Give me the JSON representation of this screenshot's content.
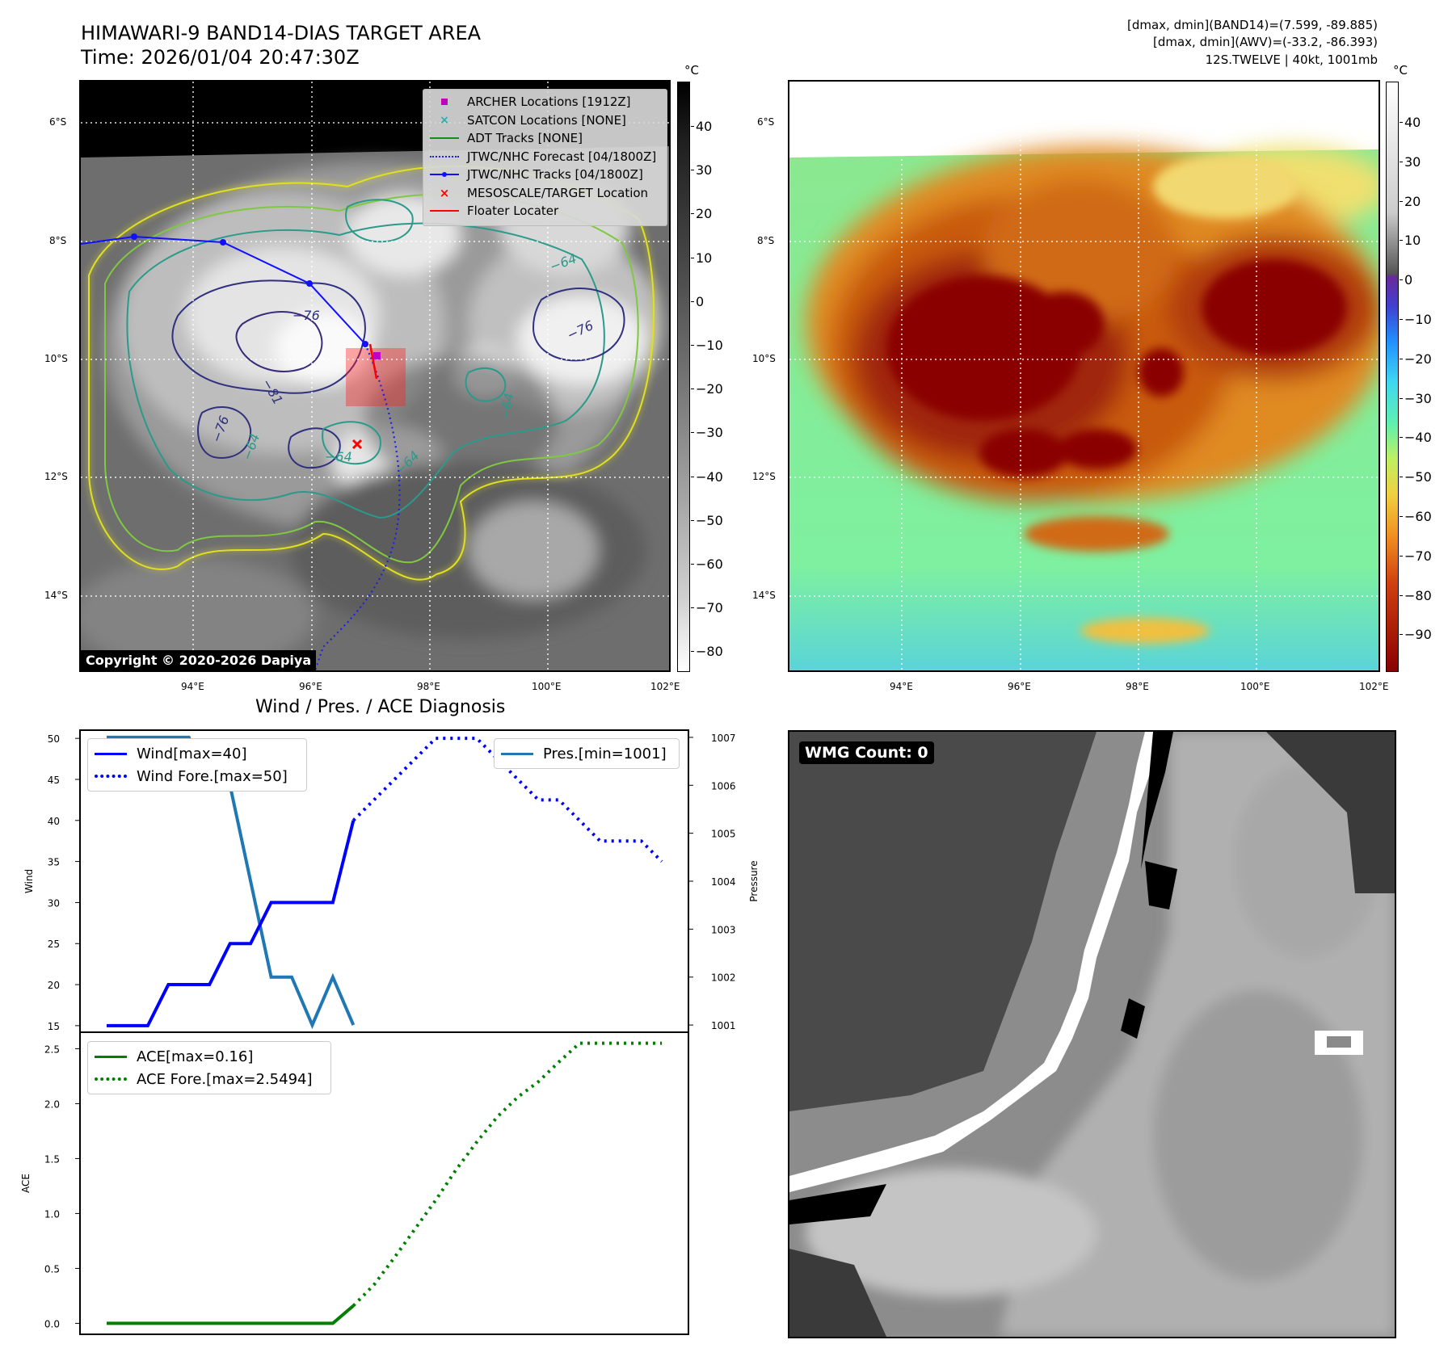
{
  "header": {
    "title_line1": "HIMAWARI-9 BAND14-DIAS TARGET AREA",
    "title_line2": "Time: 2026/01/04 20:47:30Z",
    "info_line1": "[dmax, dmin](BAND14)=(7.599, -89.885)",
    "info_line2": "[dmax, dmin](AWV)=(-33.2, -86.393)",
    "info_line3": "12S.TWELVE | 40kt, 1001mb"
  },
  "map_axes": {
    "lat_labels": [
      "6°S",
      "8°S",
      "10°S",
      "12°S",
      "14°S"
    ],
    "lon_labels": [
      "94°E",
      "96°E",
      "98°E",
      "100°E",
      "102°E"
    ]
  },
  "ir_panel": {
    "copyright": "Copyright © 2020-2026 Dapiya",
    "colorbar_unit": "°C",
    "colorbar_ticks": [
      "40",
      "30",
      "20",
      "10",
      "0",
      "−10",
      "−20",
      "−30",
      "−40",
      "−50",
      "−60",
      "−70",
      "−80"
    ],
    "contour_labels": [
      "−76",
      "−81",
      "−76",
      "−64",
      "−64",
      "−76",
      "−64",
      "−64",
      "−64"
    ],
    "legend": [
      {
        "label": "ARCHER Locations [1912Z]",
        "icon": "square-marker",
        "color": "#c000c0"
      },
      {
        "label": "SATCON Locations [NONE]",
        "icon": "x-marker",
        "color": "#20b0b0"
      },
      {
        "label": "ADT Tracks [NONE]",
        "icon": "line",
        "color": "#1a8a1a"
      },
      {
        "label": "JTWC/NHC Forecast [04/1800Z]",
        "icon": "dotted-line",
        "color": "#2020e0"
      },
      {
        "label": "JTWC/NHC Tracks [04/1800Z]",
        "icon": "line-dot",
        "color": "#1010ff"
      },
      {
        "label": "MESOSCALE/TARGET Location",
        "icon": "x-marker",
        "color": "#ff0000"
      },
      {
        "label": "Floater Locater",
        "icon": "line",
        "color": "#ff0000"
      }
    ]
  },
  "awv_panel": {
    "colorbar_unit": "°C",
    "colorbar_ticks": [
      "40",
      "30",
      "20",
      "10",
      "0",
      "−10",
      "−20",
      "−30",
      "−40",
      "−50",
      "−60",
      "−70",
      "−80",
      "−90"
    ]
  },
  "wmg_panel": {
    "badge": "WMG Count: 0"
  },
  "chart_data": [
    {
      "type": "line",
      "title": "Wind / Pres. / ACE Diagnosis",
      "x": [
        0,
        1,
        2,
        3,
        4,
        5,
        6,
        7,
        8,
        9,
        10,
        11,
        12,
        13,
        14,
        15,
        16,
        17,
        18,
        19,
        20,
        21,
        22,
        23,
        24,
        25,
        26,
        27
      ],
      "ylabel": "Wind",
      "y2label": "Pressure",
      "ylim": [
        14.2,
        51
      ],
      "y2lim": [
        1000.85,
        1007.15
      ],
      "yticks": [
        "50",
        "45",
        "40",
        "35",
        "30",
        "25",
        "20",
        "15"
      ],
      "y2ticks": [
        "1007",
        "1006",
        "1005",
        "1004",
        "1003",
        "1002",
        "1001"
      ],
      "series": [
        {
          "name": "Wind[max=40]",
          "axis": "left",
          "style": "solid",
          "color": "#0000ff",
          "x": [
            0,
            1,
            2,
            3,
            4,
            5,
            6,
            7,
            8,
            9,
            10,
            11,
            12
          ],
          "values": [
            15,
            15,
            15,
            20,
            20,
            20,
            25,
            25,
            30,
            30,
            30,
            30,
            40
          ]
        },
        {
          "name": "Wind Fore.[max=50]",
          "axis": "left",
          "style": "dotted",
          "color": "#0000ff",
          "x": [
            12,
            13,
            14,
            15,
            16,
            17,
            18,
            19,
            20,
            21,
            22,
            23,
            24,
            25,
            26,
            27
          ],
          "values": [
            40,
            42.5,
            45,
            47.5,
            50,
            50,
            50,
            47.5,
            45,
            42.5,
            42.5,
            40,
            37.5,
            37.5,
            37.5,
            35
          ]
        },
        {
          "name": "Pres.[min=1001]",
          "axis": "right",
          "style": "solid",
          "color": "#1f77b4",
          "x": [
            0,
            1,
            2,
            3,
            4,
            5,
            6,
            7,
            8,
            9,
            10,
            11,
            12
          ],
          "values": [
            1007,
            1007,
            1007,
            1007,
            1007,
            1006,
            1006,
            1004,
            1002,
            1002,
            1001,
            1002,
            1001
          ]
        }
      ]
    },
    {
      "type": "line",
      "ylabel": "ACE",
      "ylim": [
        -0.1,
        2.65
      ],
      "yticks": [
        "2.5",
        "2.0",
        "1.5",
        "1.0",
        "0.5",
        "0.0"
      ],
      "series": [
        {
          "name": "ACE[max=0.16]",
          "style": "solid",
          "color": "#008000",
          "x": [
            0,
            1,
            2,
            3,
            4,
            5,
            6,
            7,
            8,
            9,
            10,
            11,
            12
          ],
          "values": [
            0,
            0,
            0,
            0,
            0,
            0,
            0,
            0,
            0,
            0,
            0,
            0,
            0.16
          ]
        },
        {
          "name": "ACE Fore.[max=2.5494]",
          "style": "dotted",
          "color": "#008000",
          "x": [
            12,
            13,
            14,
            15,
            16,
            17,
            18,
            19,
            20,
            21,
            22,
            23,
            24,
            25,
            26,
            27
          ],
          "values": [
            0.16,
            0.35,
            0.6,
            0.86,
            1.12,
            1.4,
            1.65,
            1.88,
            2.06,
            2.2,
            2.38,
            2.55,
            2.55,
            2.55,
            2.55,
            2.55
          ]
        }
      ]
    }
  ]
}
